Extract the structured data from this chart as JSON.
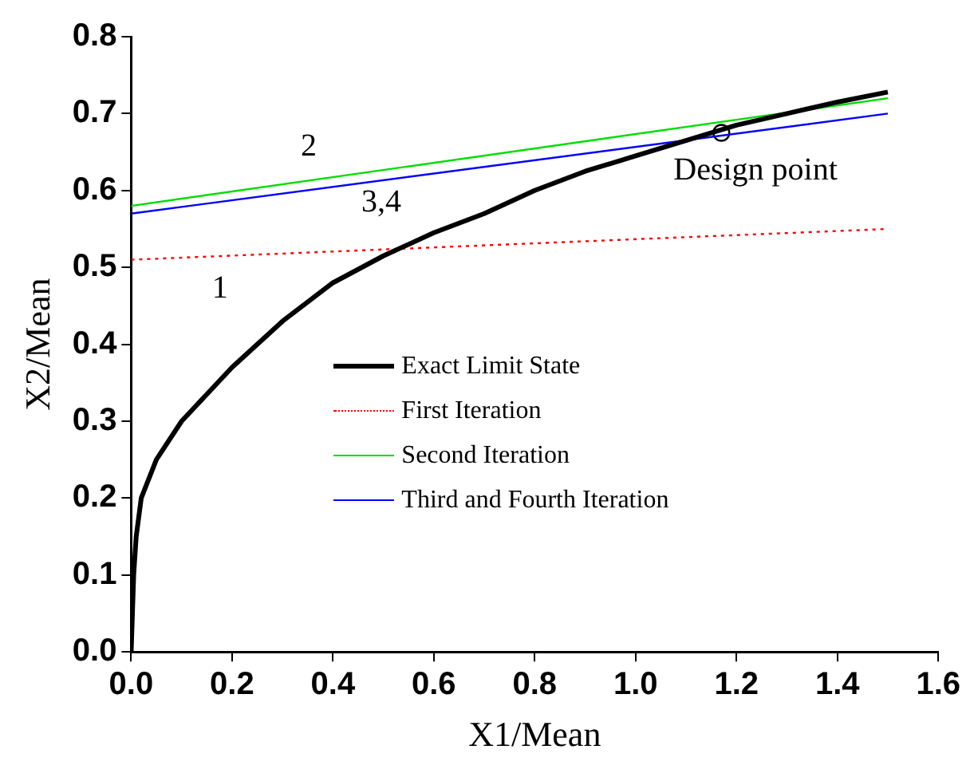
{
  "chart_data": {
    "type": "line",
    "xlabel": "X1/Mean",
    "ylabel": "X2/Mean",
    "xlim": [
      0,
      1.6
    ],
    "ylim": [
      0,
      0.8
    ],
    "xticks": [
      {
        "value": 0,
        "label": "0.0"
      },
      {
        "value": 0.2,
        "label": "0.2"
      },
      {
        "value": 0.4,
        "label": "0.4"
      },
      {
        "value": 0.6,
        "label": "0.6"
      },
      {
        "value": 0.8,
        "label": "0.8"
      },
      {
        "value": 1,
        "label": "1.0"
      },
      {
        "value": 1.2,
        "label": "1.2"
      },
      {
        "value": 1.4,
        "label": "1.4"
      },
      {
        "value": 1.6,
        "label": "1.6"
      }
    ],
    "yticks": [
      {
        "value": 0,
        "label": "0.0"
      },
      {
        "value": 0.1,
        "label": "0.1"
      },
      {
        "value": 0.2,
        "label": "0.2"
      },
      {
        "value": 0.3,
        "label": "0.3"
      },
      {
        "value": 0.4,
        "label": "0.4"
      },
      {
        "value": 0.5,
        "label": "0.5"
      },
      {
        "value": 0.6,
        "label": "0.6"
      },
      {
        "value": 0.7,
        "label": "0.7"
      },
      {
        "value": 0.8,
        "label": "0.8"
      }
    ],
    "grid": false,
    "legend": "center",
    "marker": "none",
    "series": [
      {
        "name": "Exact Limit State",
        "color": "#000000",
        "line_style": "solid",
        "x": [
          0,
          0.005,
          0.01,
          0.02,
          0.05,
          0.1,
          0.2,
          0.3,
          0.4,
          0.5,
          0.6,
          0.7,
          0.8,
          0.9,
          1.0,
          1.1,
          1.2,
          1.3,
          1.4,
          1.5
        ],
        "values": [
          0,
          0.1,
          0.15,
          0.2,
          0.25,
          0.3,
          0.37,
          0.43,
          0.48,
          0.515,
          0.545,
          0.57,
          0.6,
          0.625,
          0.645,
          0.665,
          0.685,
          0.7,
          0.715,
          0.728
        ]
      },
      {
        "name": "First Iteration",
        "color": "#ff0000",
        "line_style": "dotted",
        "x": [
          0,
          1.5
        ],
        "values": [
          0.51,
          0.55
        ]
      },
      {
        "name": "Second Iteration",
        "color": "#00dd00",
        "line_style": "solid",
        "x": [
          0,
          1.5
        ],
        "values": [
          0.58,
          0.72
        ]
      },
      {
        "name": "Third and Fourth Iteration",
        "color": "#0000ff",
        "line_style": "solid",
        "x": [
          0,
          1.5
        ],
        "values": [
          0.57,
          0.7
        ]
      },
      {
        "type": "scatter",
        "marker": "circle",
        "color": "#000000",
        "x": [
          1.17
        ],
        "values": [
          0.675
        ]
      }
    ],
    "annotations": [
      {
        "text": "Design point",
        "x": 1.17,
        "y": 0.675
      },
      "1",
      "2",
      "3,4"
    ]
  }
}
